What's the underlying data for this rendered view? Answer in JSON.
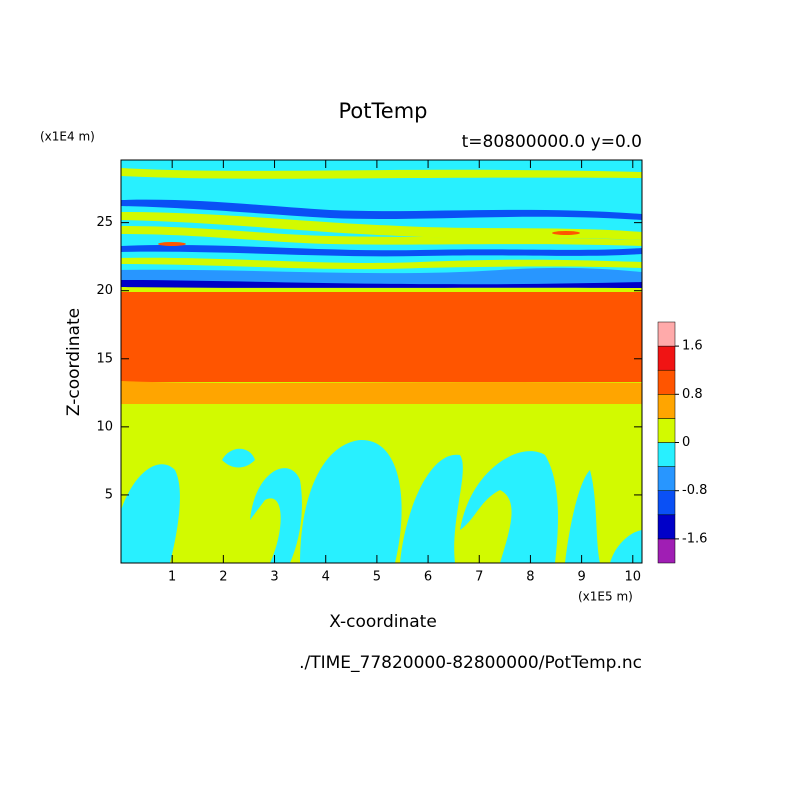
{
  "chart_data": {
    "type": "contour",
    "title": "PotTemp",
    "subtitle": "t=80800000.0 y=0.0",
    "y_unit": "(x1E4 m)",
    "x_unit": "(x1E5 m)",
    "x_label": "X-coordinate",
    "y_label": "Z-coordinate",
    "footer": "./TIME_77820000-82800000/PotTemp.nc",
    "xlim": [
      0,
      10.18
    ],
    "xticks": [
      1,
      2,
      3,
      4,
      5,
      6,
      7,
      8,
      9,
      10
    ],
    "ylim": [
      0,
      29.6
    ],
    "yticks": [
      5,
      10,
      15,
      20,
      25
    ],
    "colorbar": {
      "lim": [
        -2,
        2
      ],
      "ticks": [
        -1.6,
        -0.8,
        0,
        0.8,
        1.6
      ],
      "colors": [
        "#a01eb4",
        "#0000c8",
        "#0a50f5",
        "#2896ff",
        "#28f0ff",
        "#d2fa00",
        "#ffa500",
        "#ff5500",
        "#f01414",
        "#ffaaaa"
      ]
    }
  }
}
